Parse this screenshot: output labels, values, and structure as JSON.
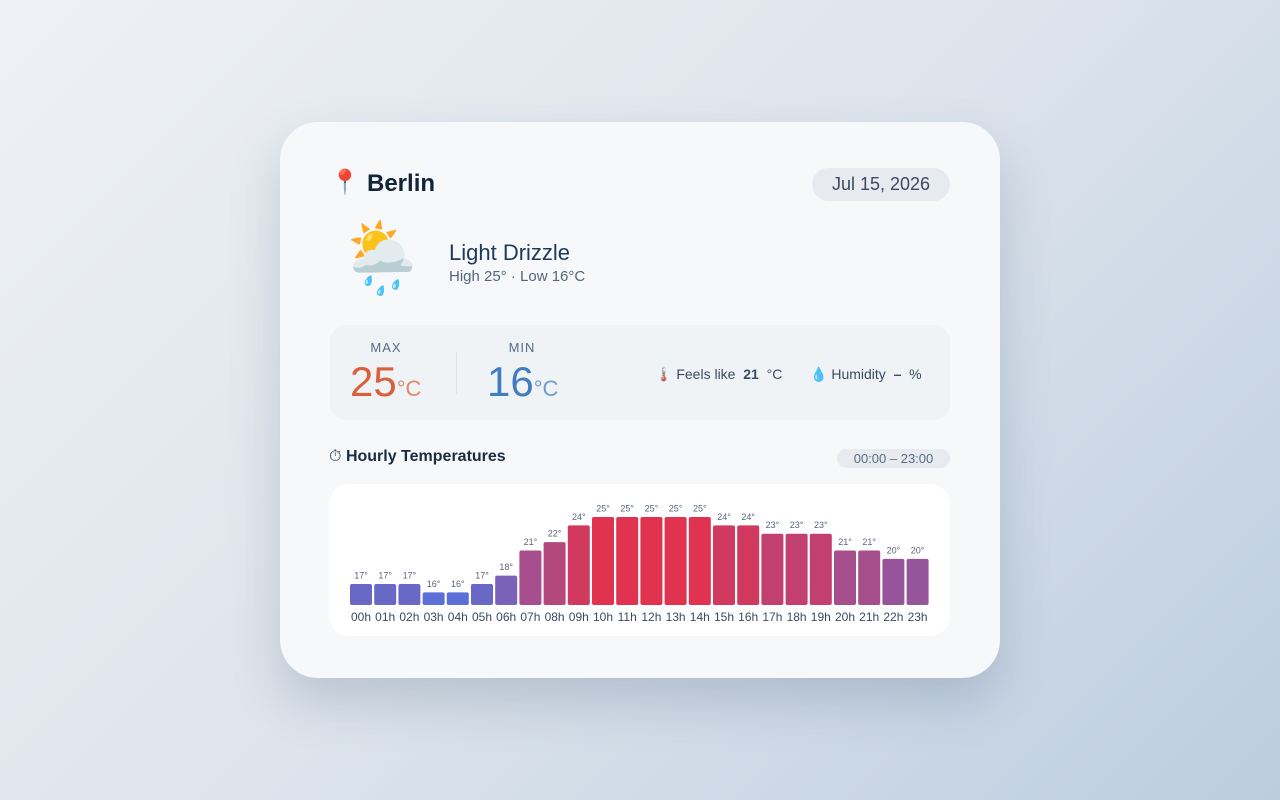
{
  "header": {
    "icon": "📍",
    "city": "Berlin",
    "date": "Jul 15, 2026"
  },
  "current": {
    "icon": "🌦️",
    "condition": "Light Drizzle",
    "summary": "High 25° · Low 16°C"
  },
  "stats": {
    "max": {
      "label": "MAX",
      "value": 25,
      "unit": "°C"
    },
    "min": {
      "label": "MIN",
      "value": 16,
      "unit": "°C"
    },
    "feels_like": {
      "icon": "🌡️",
      "label": "Feels like",
      "value": 21,
      "unit": "°C"
    },
    "humidity": {
      "icon": "💧",
      "label": "Humidity",
      "value": "–",
      "unit": "%"
    }
  },
  "hourly": {
    "icon": "⏱",
    "title": "Hourly Temperatures",
    "range": "00:00 – 23:00"
  },
  "chart_data": {
    "type": "bar",
    "categories": [
      "00h",
      "01h",
      "02h",
      "03h",
      "04h",
      "05h",
      "06h",
      "07h",
      "08h",
      "09h",
      "10h",
      "11h",
      "12h",
      "13h",
      "14h",
      "15h",
      "16h",
      "17h",
      "18h",
      "19h",
      "20h",
      "21h",
      "22h",
      "23h"
    ],
    "values": [
      17,
      17,
      17,
      16,
      16,
      17,
      18,
      21,
      22,
      24,
      25,
      25,
      25,
      25,
      25,
      24,
      24,
      23,
      23,
      23,
      21,
      21,
      20,
      20
    ],
    "value_labels": [
      "17°",
      "17°",
      "17°",
      "16°",
      "16°",
      "17°",
      "18°",
      "21°",
      "22°",
      "24°",
      "25°",
      "25°",
      "25°",
      "25°",
      "25°",
      "24°",
      "24°",
      "23°",
      "23°",
      "23°",
      "21°",
      "21°",
      "20°",
      "20°"
    ],
    "ylim": [
      14.5,
      25
    ],
    "colors": [
      "#5b6fd6",
      "#e0334f"
    ]
  }
}
